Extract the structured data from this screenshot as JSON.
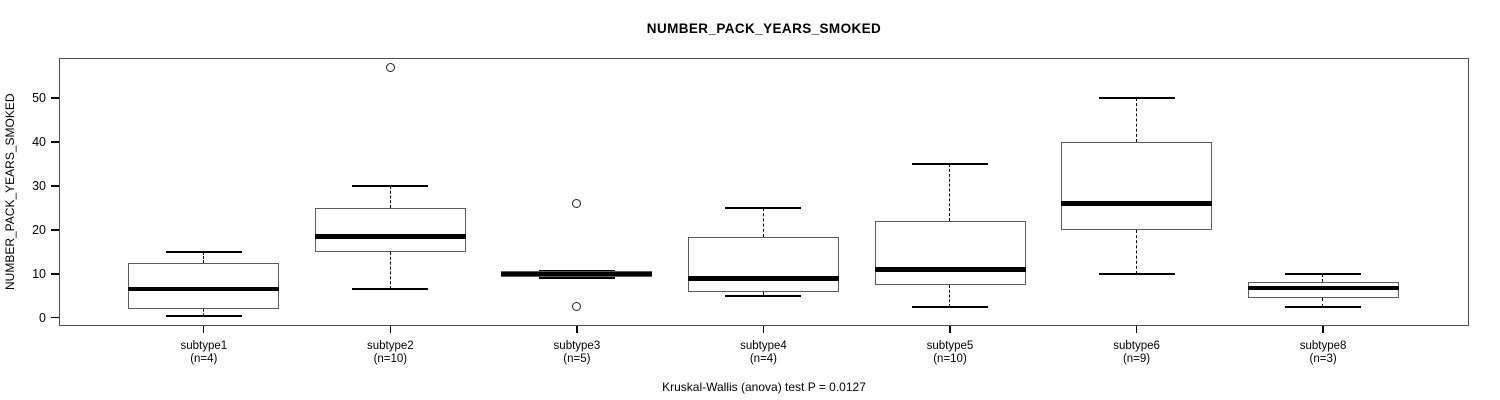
{
  "title": "NUMBER_PACK_YEARS_SMOKED",
  "footer": "Kruskal-Wallis (anova) test P = 0.0127",
  "chart_data": {
    "type": "boxplot",
    "title": "NUMBER_PACK_YEARS_SMOKED",
    "ylabel": "NUMBER_PACK_YEARS_SMOKED",
    "xlabel": "",
    "yticks": [
      0,
      10,
      20,
      30,
      40,
      50
    ],
    "ylim": [
      -1.8,
      59.3
    ],
    "grid": false,
    "legend": "none",
    "annotation": "Kruskal-Wallis (anova) test P = 0.0127",
    "groups": [
      {
        "label": "subtype1",
        "n_label": "(n=4)",
        "n": 4,
        "whisker_low": 0.5,
        "q1": 1.9,
        "median": 6.6,
        "q3": 12.5,
        "whisker_high": 15,
        "outliers": []
      },
      {
        "label": "subtype2",
        "n_label": "(n=10)",
        "n": 10,
        "whisker_low": 6.5,
        "q1": 15,
        "median": 18.5,
        "q3": 25,
        "whisker_high": 30,
        "outliers": [
          57
        ]
      },
      {
        "label": "subtype3",
        "n_label": "(n=5)",
        "n": 5,
        "whisker_low": 9,
        "q1": 9.3,
        "median": 10,
        "q3": 10.6,
        "whisker_high": 10.6,
        "outliers": [
          26,
          2.5
        ]
      },
      {
        "label": "subtype4",
        "n_label": "(n=4)",
        "n": 4,
        "whisker_low": 5,
        "q1": 5.8,
        "median": 9,
        "q3": 18.3,
        "whisker_high": 25,
        "outliers": []
      },
      {
        "label": "subtype5",
        "n_label": "(n=10)",
        "n": 10,
        "whisker_low": 2.5,
        "q1": 7.5,
        "median": 11,
        "q3": 22,
        "whisker_high": 35,
        "outliers": []
      },
      {
        "label": "subtype6",
        "n_label": "(n=9)",
        "n": 9,
        "whisker_low": 10,
        "q1": 20,
        "median": 26,
        "q3": 40,
        "whisker_high": 50,
        "outliers": []
      },
      {
        "label": "subtype8",
        "n_label": "(n=3)",
        "n": 3,
        "whisker_low": 2.5,
        "q1": 4.4,
        "median": 6.8,
        "q3": 8.2,
        "whisker_high": 10,
        "outliers": []
      }
    ]
  }
}
